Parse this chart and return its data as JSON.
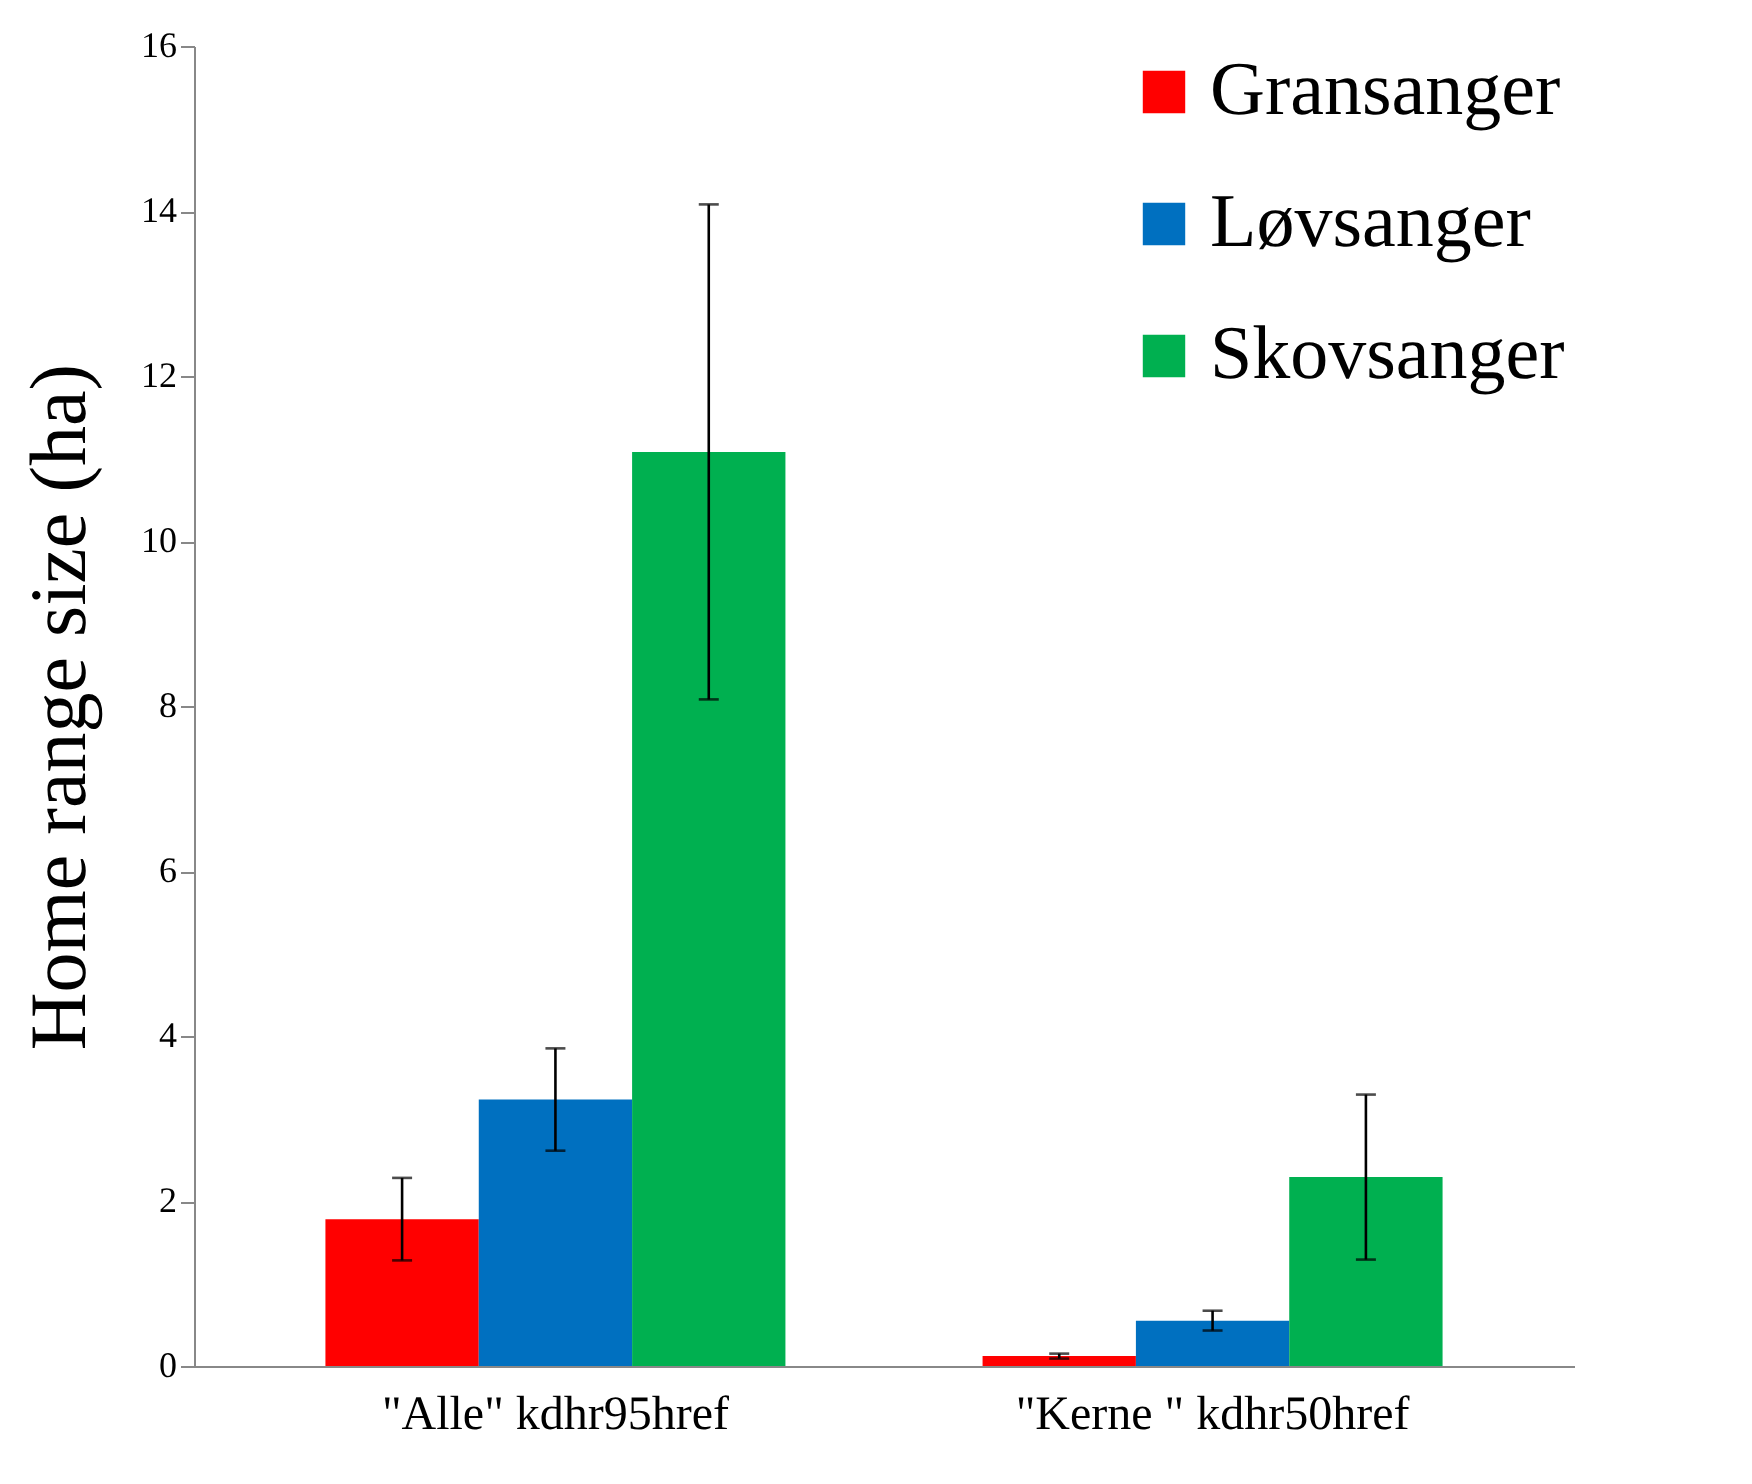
{
  "chart_data": {
    "type": "bar",
    "ylabel": "Home range size (ha)",
    "categories": [
      "\"Alle\" kdhr95href",
      "\"Kerne \" kdhr50href"
    ],
    "series": [
      {
        "name": "Gransanger",
        "color": "#ff0000",
        "values": [
          1.78,
          0.12
        ],
        "errors": [
          0.5,
          0.03
        ]
      },
      {
        "name": "Løvsanger",
        "color": "#0070c0",
        "values": [
          3.23,
          0.55
        ],
        "errors": [
          0.62,
          0.12
        ]
      },
      {
        "name": "Skovsanger",
        "color": "#00b050",
        "values": [
          11.08,
          2.29
        ],
        "errors": [
          3.0,
          1.0
        ]
      }
    ],
    "ylim": [
      0,
      16
    ],
    "yticks": [
      0,
      2,
      4,
      6,
      8,
      10,
      12,
      14,
      16
    ],
    "grid": false,
    "legend": "top right"
  }
}
